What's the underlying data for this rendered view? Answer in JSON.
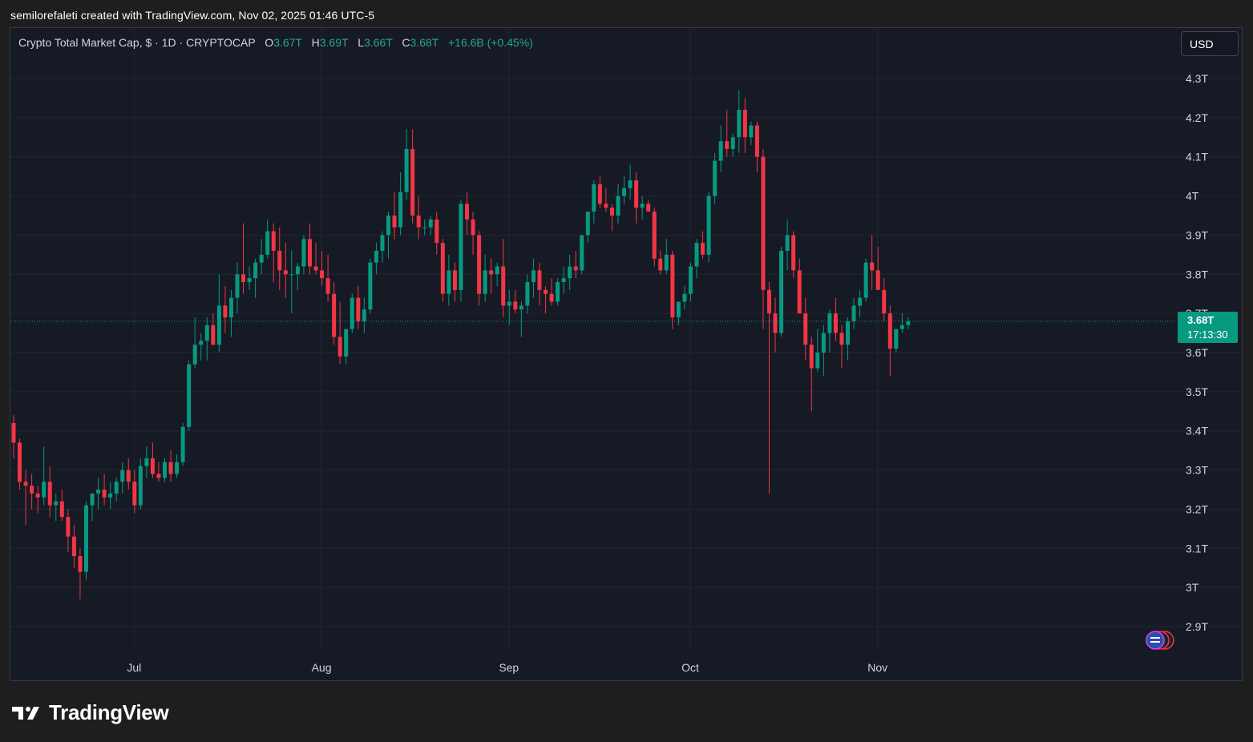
{
  "caption": "semilorefaleti created with TradingView.com, Nov 02, 2025 01:46 UTC-5",
  "legend": {
    "symbol": "Crypto Total Market Cap, $ · 1D · CRYPTOCAP",
    "o_label": "O",
    "o_value": "3.67T",
    "h_label": "H",
    "h_value": "3.69T",
    "l_label": "L",
    "l_value": "3.66T",
    "c_label": "C",
    "c_value": "3.68T",
    "change": "+16.6B (+0.45%)"
  },
  "currency": "USD",
  "last_price": {
    "price": "3.68T",
    "countdown": "17:13:30"
  },
  "brand": {
    "name": "TradingView",
    "logo_icon": "tradingview-logo-icon"
  },
  "colors": {
    "up": "#089981",
    "down": "#f23645",
    "grid": "#22262f",
    "background": "#161a25"
  },
  "chart_data": {
    "type": "candlestick",
    "y_unit": "USD trillions",
    "ylim": [
      2.8,
      4.4
    ],
    "yticks": [
      2.9,
      3.0,
      3.1,
      3.2,
      3.3,
      3.4,
      3.5,
      3.6,
      3.7,
      3.8,
      3.9,
      4.0,
      4.1,
      4.2,
      4.3
    ],
    "ytick_labels": [
      "2.9T",
      "3T",
      "3.1T",
      "3.2T",
      "3.3T",
      "3.4T",
      "3.5T",
      "3.6T",
      "3.7T",
      "3.8T",
      "3.9T",
      "4T",
      "4.1T",
      "4.2T",
      "4.3T"
    ],
    "xtick_labels": [
      {
        "label": "Jul",
        "index": 20
      },
      {
        "label": "Aug",
        "index": 51
      },
      {
        "label": "Sep",
        "index": 82
      },
      {
        "label": "Oct",
        "index": 112
      },
      {
        "label": "Nov",
        "index": 143
      }
    ],
    "start_date": "2025-06-11",
    "grid": true,
    "current_price": 3.68,
    "ohlc": [
      [
        3.42,
        3.44,
        3.33,
        3.37
      ],
      [
        3.37,
        3.38,
        3.25,
        3.27
      ],
      [
        3.27,
        3.3,
        3.16,
        3.26
      ],
      [
        3.26,
        3.29,
        3.2,
        3.24
      ],
      [
        3.24,
        3.26,
        3.19,
        3.23
      ],
      [
        3.23,
        3.36,
        3.21,
        3.27
      ],
      [
        3.27,
        3.31,
        3.18,
        3.21
      ],
      [
        3.21,
        3.24,
        3.17,
        3.22
      ],
      [
        3.22,
        3.25,
        3.17,
        3.18
      ],
      [
        3.18,
        3.2,
        3.09,
        3.13
      ],
      [
        3.13,
        3.16,
        3.05,
        3.08
      ],
      [
        3.08,
        3.1,
        2.97,
        3.04
      ],
      [
        3.04,
        3.22,
        3.02,
        3.21
      ],
      [
        3.21,
        3.24,
        3.17,
        3.24
      ],
      [
        3.24,
        3.28,
        3.2,
        3.25
      ],
      [
        3.25,
        3.29,
        3.21,
        3.23
      ],
      [
        3.23,
        3.27,
        3.2,
        3.24
      ],
      [
        3.24,
        3.28,
        3.22,
        3.27
      ],
      [
        3.27,
        3.32,
        3.24,
        3.3
      ],
      [
        3.3,
        3.33,
        3.25,
        3.27
      ],
      [
        3.27,
        3.3,
        3.19,
        3.21
      ],
      [
        3.21,
        3.33,
        3.2,
        3.31
      ],
      [
        3.31,
        3.36,
        3.28,
        3.33
      ],
      [
        3.33,
        3.37,
        3.28,
        3.29
      ],
      [
        3.29,
        3.32,
        3.27,
        3.28
      ],
      [
        3.28,
        3.33,
        3.27,
        3.32
      ],
      [
        3.32,
        3.35,
        3.27,
        3.29
      ],
      [
        3.29,
        3.34,
        3.28,
        3.32
      ],
      [
        3.32,
        3.42,
        3.31,
        3.41
      ],
      [
        3.41,
        3.58,
        3.4,
        3.57
      ],
      [
        3.57,
        3.69,
        3.56,
        3.62
      ],
      [
        3.62,
        3.65,
        3.58,
        3.63
      ],
      [
        3.63,
        3.69,
        3.58,
        3.67
      ],
      [
        3.67,
        3.7,
        3.62,
        3.62
      ],
      [
        3.62,
        3.8,
        3.6,
        3.72
      ],
      [
        3.72,
        3.77,
        3.65,
        3.69
      ],
      [
        3.69,
        3.76,
        3.64,
        3.74
      ],
      [
        3.74,
        3.83,
        3.7,
        3.8
      ],
      [
        3.8,
        3.93,
        3.75,
        3.78
      ],
      [
        3.78,
        3.82,
        3.76,
        3.79
      ],
      [
        3.79,
        3.84,
        3.74,
        3.83
      ],
      [
        3.83,
        3.89,
        3.8,
        3.85
      ],
      [
        3.85,
        3.94,
        3.84,
        3.91
      ],
      [
        3.91,
        3.93,
        3.78,
        3.86
      ],
      [
        3.86,
        3.92,
        3.76,
        3.81
      ],
      [
        3.81,
        3.88,
        3.74,
        3.8
      ],
      [
        3.8,
        3.86,
        3.7,
        3.8
      ],
      [
        3.8,
        3.83,
        3.76,
        3.82
      ],
      [
        3.82,
        3.9,
        3.8,
        3.89
      ],
      [
        3.89,
        3.93,
        3.8,
        3.82
      ],
      [
        3.82,
        3.88,
        3.8,
        3.81
      ],
      [
        3.81,
        3.86,
        3.77,
        3.79
      ],
      [
        3.79,
        3.85,
        3.73,
        3.75
      ],
      [
        3.75,
        3.78,
        3.62,
        3.64
      ],
      [
        3.64,
        3.73,
        3.57,
        3.59
      ],
      [
        3.59,
        3.66,
        3.57,
        3.66
      ],
      [
        3.66,
        3.75,
        3.65,
        3.74
      ],
      [
        3.74,
        3.77,
        3.66,
        3.68
      ],
      [
        3.68,
        3.74,
        3.65,
        3.71
      ],
      [
        3.71,
        3.84,
        3.7,
        3.83
      ],
      [
        3.83,
        3.88,
        3.8,
        3.86
      ],
      [
        3.86,
        3.91,
        3.83,
        3.9
      ],
      [
        3.9,
        3.96,
        3.84,
        3.95
      ],
      [
        3.95,
        4.01,
        3.89,
        3.92
      ],
      [
        3.92,
        4.06,
        3.9,
        4.01
      ],
      [
        4.01,
        4.17,
        3.99,
        4.12
      ],
      [
        4.12,
        4.17,
        3.93,
        3.95
      ],
      [
        3.95,
        4.0,
        3.89,
        3.92
      ],
      [
        3.92,
        3.94,
        3.9,
        3.92
      ],
      [
        3.92,
        3.95,
        3.9,
        3.94
      ],
      [
        3.94,
        3.96,
        3.85,
        3.88
      ],
      [
        3.88,
        3.89,
        3.73,
        3.75
      ],
      [
        3.75,
        3.85,
        3.72,
        3.81
      ],
      [
        3.81,
        3.83,
        3.73,
        3.76
      ],
      [
        3.76,
        3.99,
        3.73,
        3.98
      ],
      [
        3.98,
        4.01,
        3.9,
        3.94
      ],
      [
        3.94,
        3.96,
        3.85,
        3.9
      ],
      [
        3.9,
        3.91,
        3.72,
        3.75
      ],
      [
        3.75,
        3.85,
        3.73,
        3.81
      ],
      [
        3.81,
        3.84,
        3.75,
        3.8
      ],
      [
        3.8,
        3.83,
        3.77,
        3.82
      ],
      [
        3.82,
        3.89,
        3.69,
        3.72
      ],
      [
        3.72,
        3.76,
        3.67,
        3.73
      ],
      [
        3.73,
        3.76,
        3.7,
        3.71
      ],
      [
        3.71,
        3.73,
        3.64,
        3.72
      ],
      [
        3.72,
        3.8,
        3.7,
        3.78
      ],
      [
        3.78,
        3.84,
        3.74,
        3.81
      ],
      [
        3.81,
        3.83,
        3.72,
        3.76
      ],
      [
        3.76,
        3.77,
        3.7,
        3.75
      ],
      [
        3.75,
        3.79,
        3.72,
        3.73
      ],
      [
        3.73,
        3.79,
        3.72,
        3.78
      ],
      [
        3.78,
        3.82,
        3.75,
        3.79
      ],
      [
        3.79,
        3.85,
        3.76,
        3.82
      ],
      [
        3.82,
        3.86,
        3.79,
        3.81
      ],
      [
        3.81,
        3.9,
        3.8,
        3.9
      ],
      [
        3.9,
        3.96,
        3.88,
        3.96
      ],
      [
        3.96,
        4.04,
        3.93,
        4.03
      ],
      [
        4.03,
        4.05,
        3.97,
        3.98
      ],
      [
        3.98,
        4.02,
        3.96,
        3.97
      ],
      [
        3.97,
        3.98,
        3.91,
        3.95
      ],
      [
        3.95,
        4.03,
        3.93,
        4.0
      ],
      [
        4.0,
        4.05,
        3.98,
        4.02
      ],
      [
        4.02,
        4.08,
        3.99,
        4.04
      ],
      [
        4.04,
        4.06,
        3.93,
        3.97
      ],
      [
        3.97,
        4.0,
        3.94,
        3.98
      ],
      [
        3.98,
        3.99,
        3.96,
        3.96
      ],
      [
        3.96,
        3.97,
        3.82,
        3.84
      ],
      [
        3.84,
        3.86,
        3.8,
        3.81
      ],
      [
        3.81,
        3.89,
        3.8,
        3.85
      ],
      [
        3.85,
        3.86,
        3.66,
        3.69
      ],
      [
        3.69,
        3.73,
        3.67,
        3.73
      ],
      [
        3.73,
        3.77,
        3.71,
        3.75
      ],
      [
        3.75,
        3.83,
        3.73,
        3.82
      ],
      [
        3.82,
        3.89,
        3.79,
        3.88
      ],
      [
        3.88,
        3.91,
        3.84,
        3.85
      ],
      [
        3.85,
        4.01,
        3.83,
        4.0
      ],
      [
        4.0,
        4.11,
        3.98,
        4.09
      ],
      [
        4.09,
        4.18,
        4.06,
        4.14
      ],
      [
        4.14,
        4.22,
        4.1,
        4.12
      ],
      [
        4.12,
        4.16,
        4.1,
        4.15
      ],
      [
        4.15,
        4.27,
        4.11,
        4.22
      ],
      [
        4.22,
        4.25,
        4.11,
        4.15
      ],
      [
        4.15,
        4.19,
        4.13,
        4.18
      ],
      [
        4.18,
        4.19,
        4.06,
        4.1
      ],
      [
        4.1,
        4.12,
        3.66,
        3.76
      ],
      [
        3.76,
        3.78,
        3.24,
        3.7
      ],
      [
        3.7,
        3.74,
        3.6,
        3.65
      ],
      [
        3.65,
        3.87,
        3.64,
        3.86
      ],
      [
        3.86,
        3.94,
        3.81,
        3.9
      ],
      [
        3.9,
        3.91,
        3.79,
        3.81
      ],
      [
        3.81,
        3.84,
        3.7,
        3.7
      ],
      [
        3.7,
        3.74,
        3.58,
        3.62
      ],
      [
        3.62,
        3.64,
        3.45,
        3.56
      ],
      [
        3.56,
        3.66,
        3.55,
        3.6
      ],
      [
        3.6,
        3.67,
        3.54,
        3.65
      ],
      [
        3.65,
        3.71,
        3.6,
        3.7
      ],
      [
        3.7,
        3.74,
        3.63,
        3.65
      ],
      [
        3.65,
        3.67,
        3.56,
        3.62
      ],
      [
        3.62,
        3.69,
        3.58,
        3.68
      ],
      [
        3.68,
        3.74,
        3.66,
        3.72
      ],
      [
        3.72,
        3.76,
        3.69,
        3.74
      ],
      [
        3.74,
        3.84,
        3.73,
        3.83
      ],
      [
        3.83,
        3.9,
        3.76,
        3.81
      ],
      [
        3.81,
        3.87,
        3.76,
        3.76
      ],
      [
        3.76,
        3.79,
        3.68,
        3.7
      ],
      [
        3.7,
        3.72,
        3.54,
        3.61
      ],
      [
        3.61,
        3.66,
        3.6,
        3.66
      ],
      [
        3.66,
        3.7,
        3.65,
        3.67
      ],
      [
        3.67,
        3.69,
        3.66,
        3.68
      ]
    ]
  }
}
